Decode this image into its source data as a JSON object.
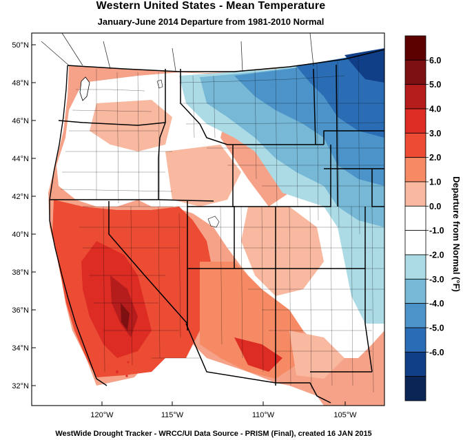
{
  "header": {
    "title": "Western United States - Mean Temperature",
    "subtitle": "January-June 2014  Departure from 1981-2010 Normal"
  },
  "footer": {
    "text": "WestWide Drought Tracker - WRCC/UI  Data Source - PRISM (Final), created 16 JAN 2015"
  },
  "map": {
    "latitude_labels": [
      "50°N",
      "48°N",
      "46°N",
      "44°N",
      "42°N",
      "40°N",
      "38°N",
      "36°N",
      "34°N",
      "32°N"
    ],
    "longitude_labels": [
      "120°W",
      "115°W",
      "110°W",
      "105°W"
    ]
  },
  "colorbar": {
    "title": "Departure from Normal (°F)",
    "labels": [
      "6.0",
      "5.0",
      "4.0",
      "3.0",
      "2.0",
      "1.0",
      "0.0",
      "-1.0",
      "-2.0",
      "-3.0",
      "-4.0",
      "-5.0",
      "-6.0"
    ],
    "colors": [
      "#5c0000",
      "#7d1010",
      "#b51c1c",
      "#dc2c24",
      "#ec4c34",
      "#f58a64",
      "#f9b9a0",
      "#ffffff",
      "#ffffff",
      "#acdbe6",
      "#76b8d6",
      "#4b93c8",
      "#2b6db5",
      "#103f88",
      "#0a2656"
    ]
  },
  "colors": {
    "warm_strong": "#dc2c24",
    "warm_mid": "#ec4c34",
    "warm_light": "#f58a64",
    "warm_pale": "#f9b9a0",
    "neutral": "#ffffff",
    "cool_pale": "#acdbe6",
    "cool_light": "#76b8d6",
    "cool_mid": "#4b93c8",
    "cool_strong": "#2b6db5"
  }
}
